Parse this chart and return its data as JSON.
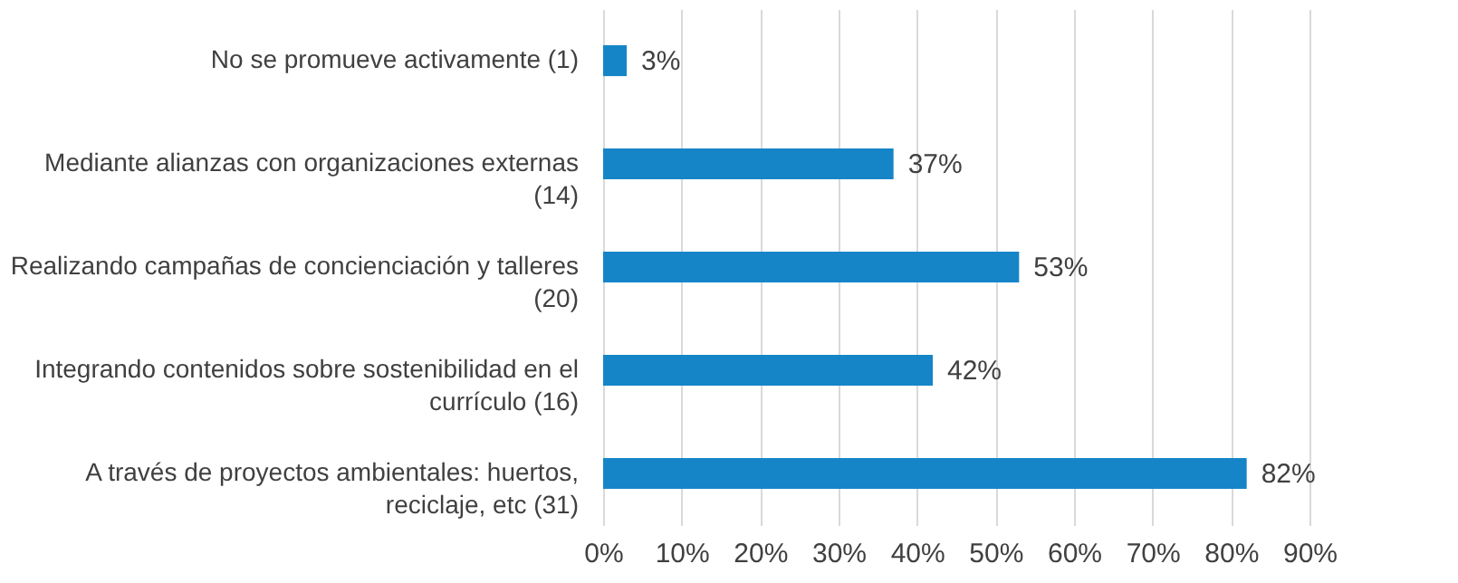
{
  "chart_data": {
    "type": "bar",
    "orientation": "horizontal",
    "categories": [
      "No se promueve activamente (1)",
      "Mediante alianzas con organizaciones externas (14)",
      "Realizando campañas de concienciación y talleres (20)",
      "Integrando contenidos sobre sostenibilidad en el currículo (16)",
      "A través de proyectos ambientales: huertos, reciclaje, etc (31)"
    ],
    "values": [
      3,
      37,
      53,
      42,
      82
    ],
    "value_labels": [
      "3%",
      "37%",
      "53%",
      "42%",
      "82%"
    ],
    "color": "#1585c8",
    "xlim": [
      0,
      90
    ],
    "xticks": [
      {
        "value": 0,
        "label": "0%"
      },
      {
        "value": 10,
        "label": "10%"
      },
      {
        "value": 20,
        "label": "20%"
      },
      {
        "value": 30,
        "label": "30%"
      },
      {
        "value": 40,
        "label": "40%"
      },
      {
        "value": 50,
        "label": "50%"
      },
      {
        "value": 60,
        "label": "60%"
      },
      {
        "value": 70,
        "label": "70%"
      },
      {
        "value": 80,
        "label": "80%"
      },
      {
        "value": 90,
        "label": "90%"
      }
    ],
    "grid": "x"
  }
}
